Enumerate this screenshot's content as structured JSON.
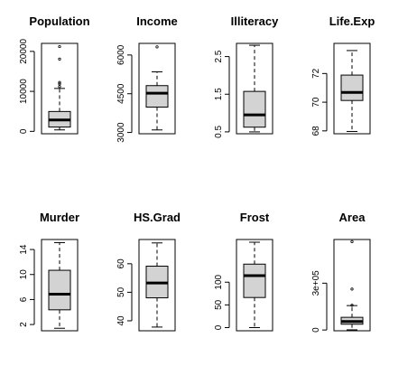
{
  "chart_data": [
    {
      "type": "box",
      "title": "Population",
      "ticks": [
        0,
        10000,
        20000
      ],
      "ylim": [
        -600,
        22000
      ],
      "box": {
        "whisker_low": 365,
        "q1": 1080,
        "median": 2838,
        "q3": 4968,
        "whisker_high": 10735
      },
      "outliers": [
        11197,
        11860,
        12237,
        18076,
        21198
      ]
    },
    {
      "type": "box",
      "title": "Income",
      "ticks": [
        3000,
        4500,
        6000
      ],
      "ylim": [
        2950,
        6450
      ],
      "box": {
        "whisker_low": 3098,
        "q1": 3983,
        "median": 4519,
        "q3": 4814,
        "whisker_high": 5348
      },
      "outliers": [
        6315
      ]
    },
    {
      "type": "box",
      "title": "Illiteracy",
      "ticks": [
        0.5,
        1.5,
        2.5
      ],
      "ylim": [
        0.45,
        2.85
      ],
      "box": {
        "whisker_low": 0.5,
        "q1": 0.625,
        "median": 0.95,
        "q3": 1.575,
        "whisker_high": 2.8
      },
      "outliers": []
    },
    {
      "type": "box",
      "title": "Life.Exp",
      "ticks": [
        68,
        70,
        72
      ],
      "ylim": [
        67.8,
        74.1
      ],
      "box": {
        "whisker_low": 67.96,
        "q1": 70.12,
        "median": 70.68,
        "q3": 71.89,
        "whisker_high": 73.6
      },
      "outliers": []
    },
    {
      "type": "box",
      "title": "Murder",
      "ticks": [
        2,
        6,
        10,
        14
      ],
      "ylim": [
        1.0,
        15.6
      ],
      "box": {
        "whisker_low": 1.4,
        "q1": 4.35,
        "median": 6.85,
        "q3": 10.675,
        "whisker_high": 15.1
      },
      "outliers": []
    },
    {
      "type": "box",
      "title": "HS.Grad",
      "ticks": [
        40,
        50,
        60
      ],
      "ylim": [
        36.5,
        68.5
      ],
      "box": {
        "whisker_low": 37.8,
        "q1": 48.05,
        "median": 53.25,
        "q3": 59.15,
        "whisker_high": 67.3
      },
      "outliers": []
    },
    {
      "type": "box",
      "title": "Frost",
      "ticks": [
        0,
        50,
        100
      ],
      "ylim": [
        -7,
        194
      ],
      "box": {
        "whisker_low": 0,
        "q1": 66.25,
        "median": 114.5,
        "q3": 139.75,
        "whisker_high": 188
      },
      "outliers": []
    },
    {
      "type": "box",
      "title": "Area",
      "ticks": [
        0,
        300000
      ],
      "ylim": [
        -5000,
        580000
      ],
      "box": {
        "whisker_low": 1049,
        "q1": 36985,
        "median": 54277,
        "q3": 81163,
        "whisker_high": 156361
      },
      "outliers": [
        158693,
        262134,
        566432
      ]
    }
  ]
}
